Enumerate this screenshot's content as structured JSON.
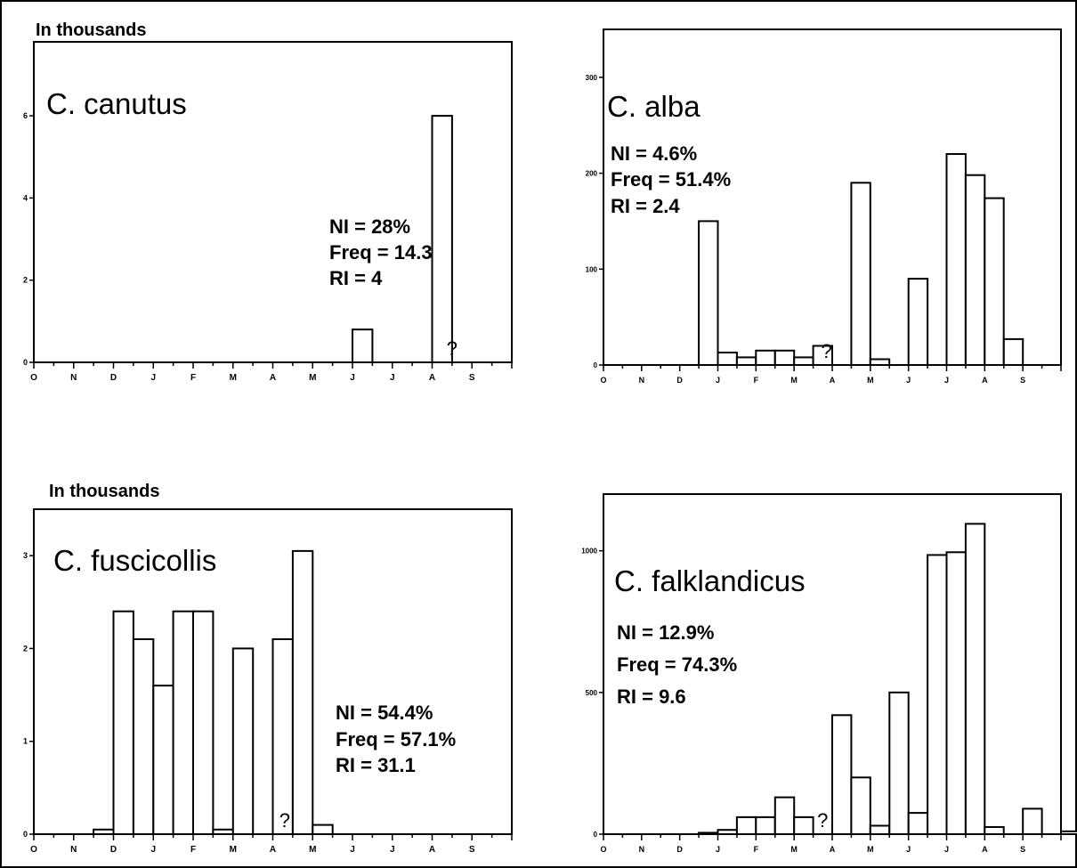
{
  "figure": {
    "panels": [
      {
        "unit_label": "In thousands",
        "species": "C. canutus",
        "stats": [
          "NI = 28%",
          "Freq = 14.3%",
          "RI = 4"
        ],
        "y_ticks": [
          "0",
          "2",
          "4",
          "6"
        ],
        "month_labels": [
          "O",
          "N",
          "D",
          "J",
          "F",
          "M",
          "A",
          "M",
          "J",
          "J",
          "A",
          "S"
        ],
        "missing_marker": "?"
      },
      {
        "unit_label": "",
        "species": "C. alba",
        "stats": [
          "NI = 4.6%",
          "Freq = 51.4%",
          "RI = 2.4"
        ],
        "y_ticks": [
          "0",
          "100",
          "200",
          "300"
        ],
        "month_labels": [
          "O",
          "N",
          "D",
          "J",
          "F",
          "M",
          "A",
          "M",
          "J",
          "J",
          "A",
          "S"
        ],
        "missing_marker": "?"
      },
      {
        "unit_label": "In thousands",
        "species": "C. fuscicollis",
        "stats": [
          "NI = 54.4%",
          "Freq = 57.1%",
          "RI = 31.1"
        ],
        "y_ticks": [
          "0",
          "1",
          "2",
          "3"
        ],
        "month_labels": [
          "O",
          "N",
          "D",
          "J",
          "F",
          "M",
          "A",
          "M",
          "J",
          "J",
          "A",
          "S"
        ],
        "missing_marker": "?"
      },
      {
        "unit_label": "",
        "species": "C. falklandicus",
        "stats": [
          "NI = 12.9%",
          "Freq = 74.3%",
          "RI = 9.6"
        ],
        "y_ticks": [
          "0",
          "500",
          "1000"
        ],
        "month_labels": [
          "O",
          "N",
          "D",
          "J",
          "F",
          "M",
          "A",
          "M",
          "J",
          "J",
          "A",
          "S"
        ],
        "missing_marker": "?"
      }
    ]
  },
  "chart_data": [
    {
      "type": "bar",
      "title": "C. canutus",
      "ylabel": "In thousands",
      "x_unit": "months, Oct to Sep (two bars per month)",
      "ylim": [
        0,
        7.8
      ],
      "x_start": 0,
      "x_step": 0.5,
      "values": [
        0,
        0,
        0,
        0,
        0,
        0,
        0,
        0,
        0,
        0,
        0,
        0,
        0,
        0,
        0,
        0,
        0.8,
        0,
        0,
        0,
        6,
        0,
        0,
        0,
        0,
        0,
        0,
        0,
        0,
        0,
        0,
        0,
        0,
        0,
        0,
        0,
        0,
        0,
        0,
        0,
        0,
        0,
        0,
        0,
        0,
        0,
        0,
        0
      ],
      "annotation": {
        "text": "?",
        "x": 10.5
      }
    },
    {
      "type": "bar",
      "title": "C. alba",
      "ylabel": "",
      "x_unit": "months, Oct to Sep (two bars per month)",
      "ylim": [
        0,
        350
      ],
      "x_start": 0,
      "x_step": 0.5,
      "values": [
        0,
        0,
        0,
        0,
        0,
        150,
        13,
        8,
        15,
        15,
        8,
        20,
        0,
        190,
        6,
        0,
        90,
        0,
        220,
        198,
        174,
        27,
        0,
        0,
        0,
        0
      ],
      "annotation": {
        "text": "?",
        "x": 5.85
      }
    },
    {
      "type": "bar",
      "title": "C. fuscicollis",
      "ylabel": "In thousands",
      "x_unit": "months, Oct to Sep (two bars per month)",
      "ylim": [
        0,
        3.5
      ],
      "x_start": 0,
      "x_step": 0.5,
      "values": [
        0,
        0,
        0,
        0.05,
        2.4,
        2.1,
        1.6,
        2.4,
        2.4,
        0.05,
        2.0,
        0,
        2.1,
        3.05,
        0.1,
        0,
        0,
        0,
        0,
        0,
        0,
        0,
        0,
        0,
        0,
        0
      ],
      "annotation": {
        "text": "?",
        "x": 6.3
      }
    },
    {
      "type": "bar",
      "title": "C. falklandicus",
      "ylabel": "",
      "x_unit": "months, Oct to Sep (two bars per month)",
      "ylim": [
        0,
        1200
      ],
      "x_start": 0,
      "x_step": 0.5,
      "values": [
        0,
        0,
        0,
        0,
        0,
        5,
        15,
        60,
        60,
        130,
        60,
        0,
        420,
        200,
        30,
        500,
        75,
        985,
        995,
        1095,
        25,
        0,
        90,
        0,
        10,
        0
      ],
      "annotation": {
        "text": "?",
        "x": 5.75
      }
    }
  ]
}
